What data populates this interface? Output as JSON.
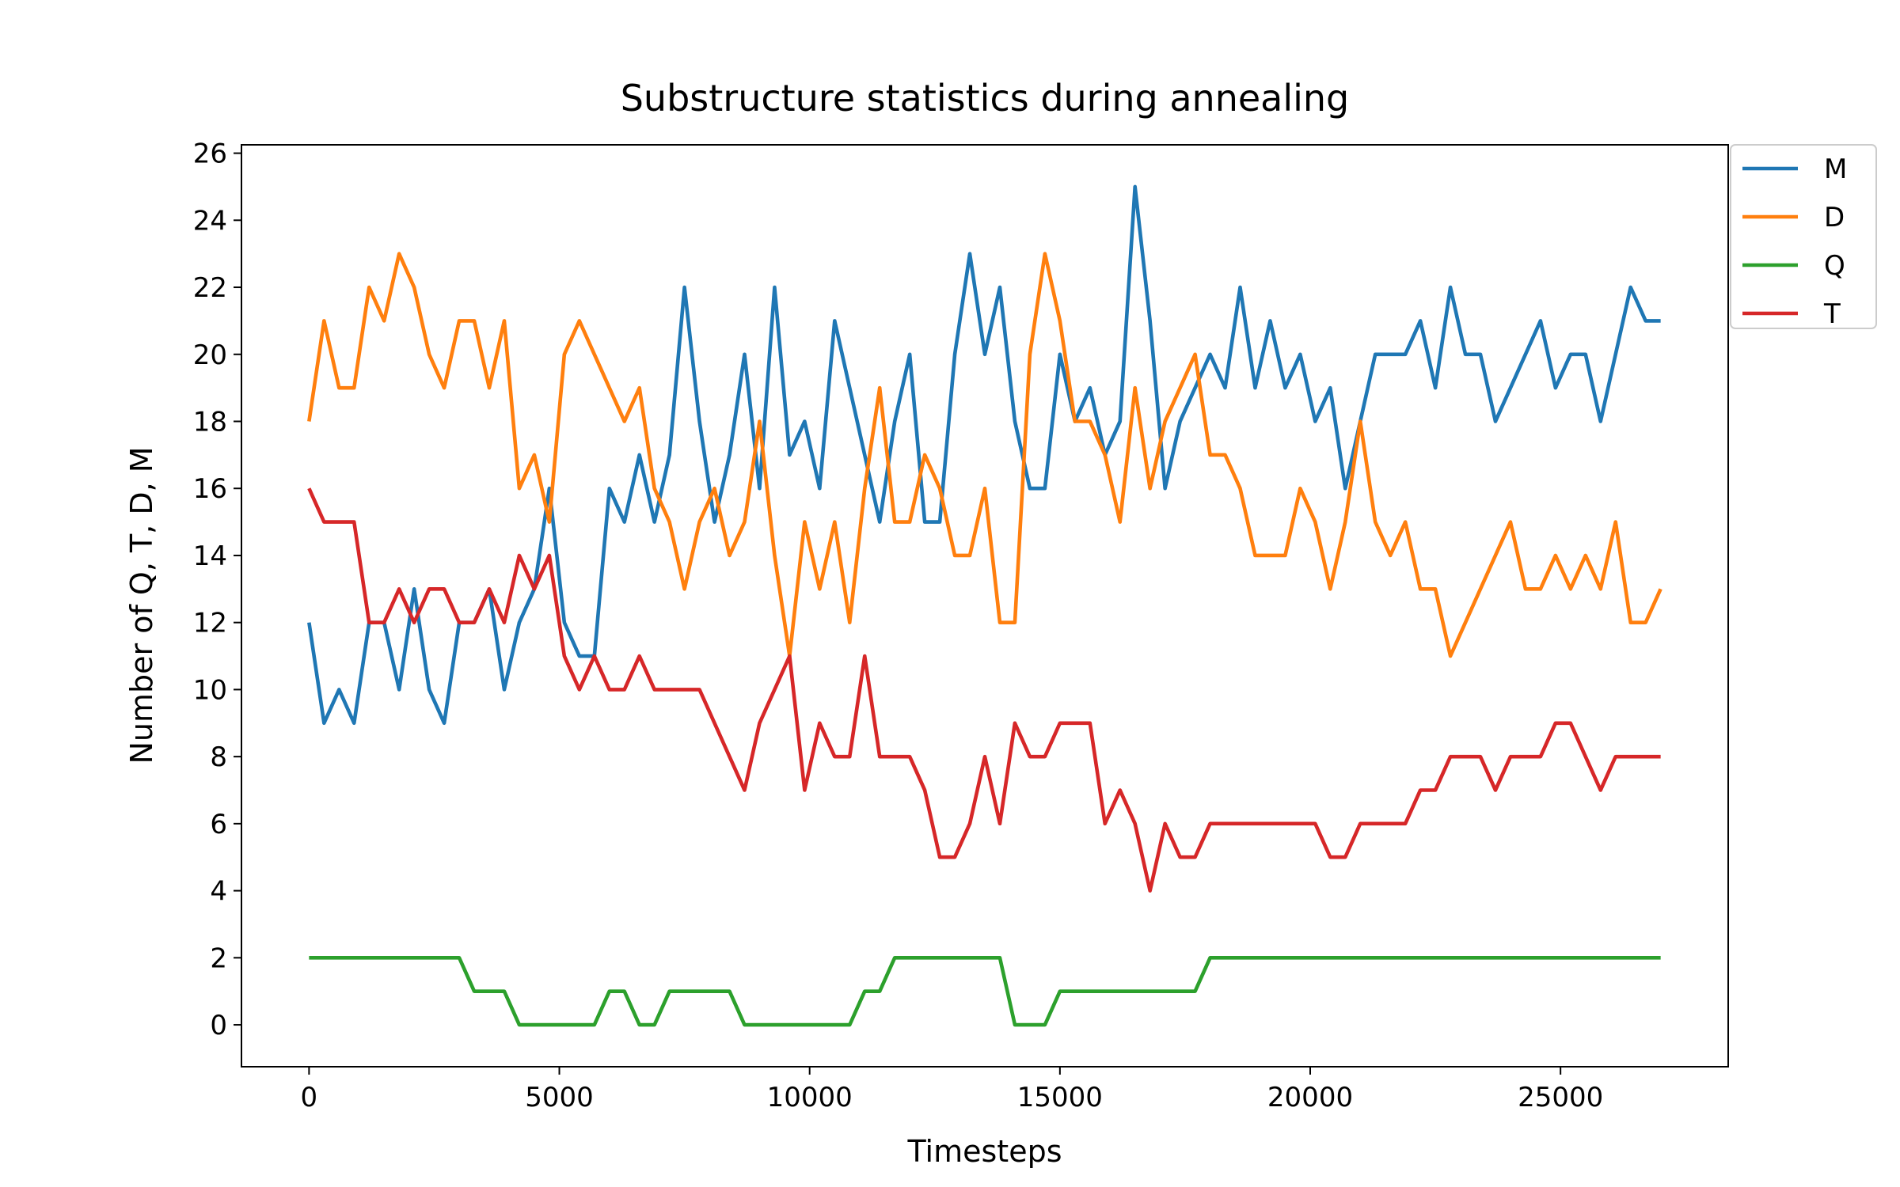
{
  "chart_data": {
    "type": "line",
    "title": "Substructure statistics during annealing",
    "xlabel": "Timesteps",
    "ylabel": "Number of Q, T, D, M",
    "x": [
      0,
      300,
      600,
      900,
      1200,
      1500,
      1800,
      2100,
      2400,
      2700,
      3000,
      3300,
      3600,
      3900,
      4200,
      4500,
      4800,
      5100,
      5400,
      5700,
      6000,
      6300,
      6600,
      6900,
      7200,
      7500,
      7800,
      8100,
      8400,
      8700,
      9000,
      9300,
      9600,
      9900,
      10200,
      10500,
      10800,
      11100,
      11400,
      11700,
      12000,
      12300,
      12600,
      12900,
      13200,
      13500,
      13800,
      14100,
      14400,
      14700,
      15000,
      15300,
      15600,
      15900,
      16200,
      16500,
      16800,
      17100,
      17400,
      17700,
      18000,
      18300,
      18600,
      18900,
      19200,
      19500,
      19800,
      20100,
      20400,
      20700,
      21000,
      21300,
      21600,
      21900,
      22200,
      22500,
      22800,
      23100,
      23400,
      23700,
      24000,
      24300,
      24600,
      24900,
      25200,
      25500,
      25800,
      26100,
      26400,
      26700,
      27000
    ],
    "series": [
      {
        "name": "M",
        "color": "#1f77b4",
        "values": [
          12,
          9,
          10,
          9,
          12,
          12,
          10,
          13,
          10,
          9,
          12,
          12,
          13,
          10,
          12,
          13,
          16,
          12,
          11,
          11,
          16,
          15,
          17,
          15,
          17,
          22,
          18,
          15,
          17,
          20,
          16,
          22,
          17,
          18,
          16,
          21,
          19,
          17,
          15,
          18,
          20,
          15,
          15,
          20,
          23,
          20,
          22,
          18,
          16,
          16,
          20,
          18,
          19,
          17,
          18,
          25,
          21,
          16,
          18,
          19,
          20,
          19,
          22,
          19,
          21,
          19,
          20,
          18,
          19,
          16,
          18,
          20,
          20,
          20,
          21,
          19,
          22,
          20,
          20,
          18,
          19,
          20,
          21,
          19,
          20,
          20,
          18,
          20,
          22,
          21,
          21
        ]
      },
      {
        "name": "D",
        "color": "#ff7f0e",
        "values": [
          18,
          21,
          19,
          19,
          22,
          21,
          23,
          22,
          20,
          19,
          21,
          21,
          19,
          21,
          16,
          17,
          15,
          20,
          21,
          20,
          19,
          18,
          19,
          16,
          15,
          13,
          15,
          16,
          14,
          15,
          18,
          14,
          11,
          15,
          13,
          15,
          12,
          16,
          19,
          15,
          15,
          17,
          16,
          14,
          14,
          16,
          12,
          12,
          20,
          23,
          21,
          18,
          18,
          17,
          15,
          19,
          16,
          18,
          19,
          20,
          17,
          17,
          16,
          14,
          14,
          14,
          16,
          15,
          13,
          15,
          18,
          15,
          14,
          15,
          13,
          13,
          11,
          12,
          13,
          14,
          15,
          13,
          13,
          14,
          13,
          14,
          13,
          15,
          12,
          12,
          13
        ]
      },
      {
        "name": "Q",
        "color": "#2ca02c",
        "values": [
          2,
          2,
          2,
          2,
          2,
          2,
          2,
          2,
          2,
          2,
          2,
          1,
          1,
          1,
          0,
          0,
          0,
          0,
          0,
          0,
          1,
          1,
          0,
          0,
          1,
          1,
          1,
          1,
          1,
          0,
          0,
          0,
          0,
          0,
          0,
          0,
          0,
          1,
          1,
          2,
          2,
          2,
          2,
          2,
          2,
          2,
          2,
          0,
          0,
          0,
          1,
          1,
          1,
          1,
          1,
          1,
          1,
          1,
          1,
          1,
          2,
          2,
          2,
          2,
          2,
          2,
          2,
          2,
          2,
          2,
          2,
          2,
          2,
          2,
          2,
          2,
          2,
          2,
          2,
          2,
          2,
          2,
          2,
          2,
          2,
          2,
          2,
          2,
          2,
          2,
          2
        ]
      },
      {
        "name": "T",
        "color": "#d62728",
        "values": [
          16,
          15,
          15,
          15,
          12,
          12,
          13,
          12,
          13,
          13,
          12,
          12,
          13,
          12,
          14,
          13,
          14,
          11,
          10,
          11,
          10,
          10,
          11,
          10,
          10,
          10,
          10,
          9,
          8,
          7,
          9,
          10,
          11,
          7,
          9,
          8,
          8,
          11,
          8,
          8,
          8,
          7,
          5,
          5,
          6,
          8,
          6,
          9,
          8,
          8,
          9,
          9,
          9,
          6,
          7,
          6,
          4,
          6,
          5,
          5,
          6,
          6,
          6,
          6,
          6,
          6,
          6,
          6,
          5,
          5,
          6,
          6,
          6,
          6,
          7,
          7,
          8,
          8,
          8,
          7,
          8,
          8,
          8,
          9,
          9,
          8,
          7,
          8,
          8,
          8,
          8
        ]
      }
    ],
    "xlim": [
      -1350,
      28350
    ],
    "xticks": [
      0,
      5000,
      10000,
      15000,
      20000,
      25000
    ],
    "ylim": [
      -1.25,
      26.25
    ],
    "yticks": [
      0,
      2,
      4,
      6,
      8,
      10,
      12,
      14,
      16,
      18,
      20,
      22,
      24,
      26
    ],
    "grid": false,
    "legend": "upper right"
  }
}
